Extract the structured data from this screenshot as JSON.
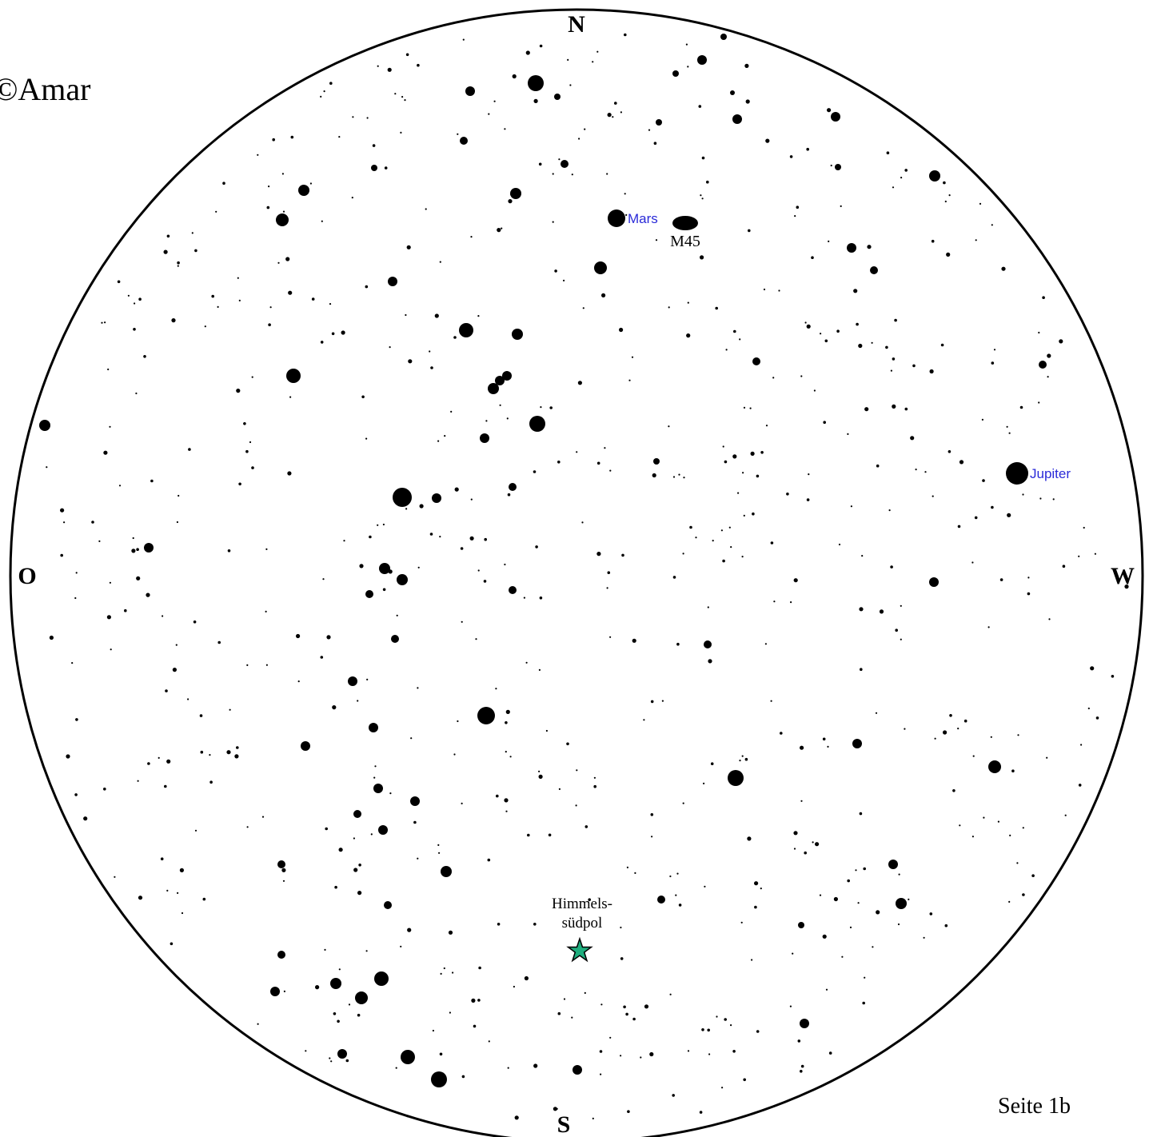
{
  "brand": {
    "text": "©Amar"
  },
  "page_label": "Seite 1b",
  "compass": {
    "north": "N",
    "south": "S",
    "east": "O",
    "west": "W"
  },
  "planets": [
    {
      "name": "Mars",
      "color": "#2a2ad8"
    },
    {
      "name": "Jupiter",
      "color": "#2a2ad8"
    }
  ],
  "deep_sky": [
    {
      "name": "M45",
      "icon": "ellipse-marker"
    }
  ],
  "markers": [
    {
      "label_line1": "Himmels-",
      "label_line2": "südpol",
      "icon": "star-icon",
      "color": "#1fae7e"
    }
  ],
  "colors": {
    "stars": "#000000",
    "horizon": "#000000",
    "background": "#ffffff"
  }
}
